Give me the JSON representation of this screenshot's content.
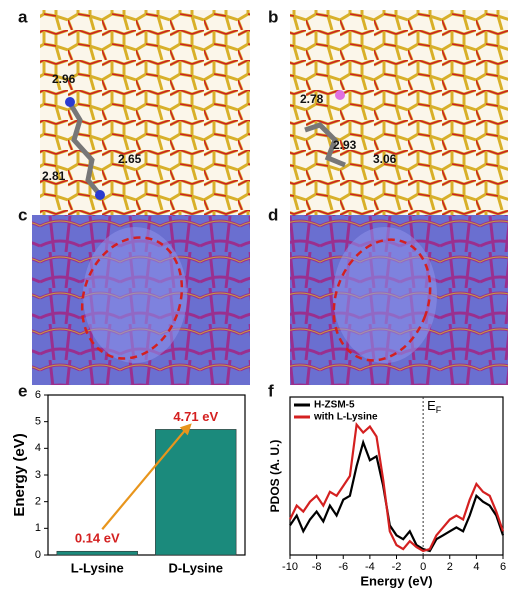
{
  "panels": {
    "labels": [
      "a",
      "b",
      "c",
      "d",
      "e",
      "f"
    ],
    "a_distances": [
      "2.96",
      "2.65",
      "2.81"
    ],
    "b_distances": [
      "2.78",
      "2.93",
      "3.06"
    ]
  },
  "chart_data": [
    {
      "type": "bar",
      "ylabel": "Energy (eV)",
      "categories": [
        "L-Lysine",
        "D-Lysine"
      ],
      "values": [
        0.14,
        4.71
      ],
      "value_labels": [
        "0.14 eV",
        "4.71 eV"
      ],
      "color": "#1b8a7c",
      "label_color": "#d42020",
      "ylim": [
        0,
        6
      ],
      "yticks": [
        0,
        1,
        2,
        3,
        4,
        5,
        6
      ]
    },
    {
      "type": "line",
      "ylabel": "PDOS (A. U.)",
      "xlabel": "Energy (eV)",
      "annotation": "E",
      "annotation_sub": "F",
      "fermi_x": 0,
      "x": [
        -10,
        -9.5,
        -9,
        -8.5,
        -8,
        -7.5,
        -7,
        -6.5,
        -6,
        -5.5,
        -5,
        -4.5,
        -4,
        -3.5,
        -3,
        -2.5,
        -2,
        -1.5,
        -1,
        -0.5,
        0,
        0.5,
        1,
        1.5,
        2,
        2.5,
        3,
        3.5,
        4,
        4.5,
        5,
        5.5,
        6
      ],
      "series": [
        {
          "name": "H-ZSM-5",
          "color": "#000000",
          "values": [
            15,
            20,
            12,
            18,
            22,
            17,
            25,
            20,
            28,
            30,
            45,
            57,
            48,
            50,
            35,
            15,
            10,
            8,
            12,
            5,
            3,
            2,
            8,
            10,
            12,
            14,
            12,
            20,
            30,
            27,
            25,
            20,
            10
          ]
        },
        {
          "name": "with L-Lysine",
          "color": "#d42020",
          "values": [
            18,
            25,
            22,
            27,
            30,
            25,
            32,
            30,
            35,
            40,
            66,
            62,
            65,
            60,
            38,
            12,
            5,
            3,
            7,
            4,
            2,
            3,
            10,
            14,
            18,
            20,
            18,
            28,
            36,
            32,
            30,
            22,
            12
          ]
        }
      ],
      "xlim": [
        -10,
        6
      ],
      "xticks": [
        -10,
        -8,
        -6,
        -4,
        -2,
        0,
        2,
        4,
        6
      ],
      "ylim": [
        0,
        80
      ],
      "legend": "upper left"
    }
  ]
}
